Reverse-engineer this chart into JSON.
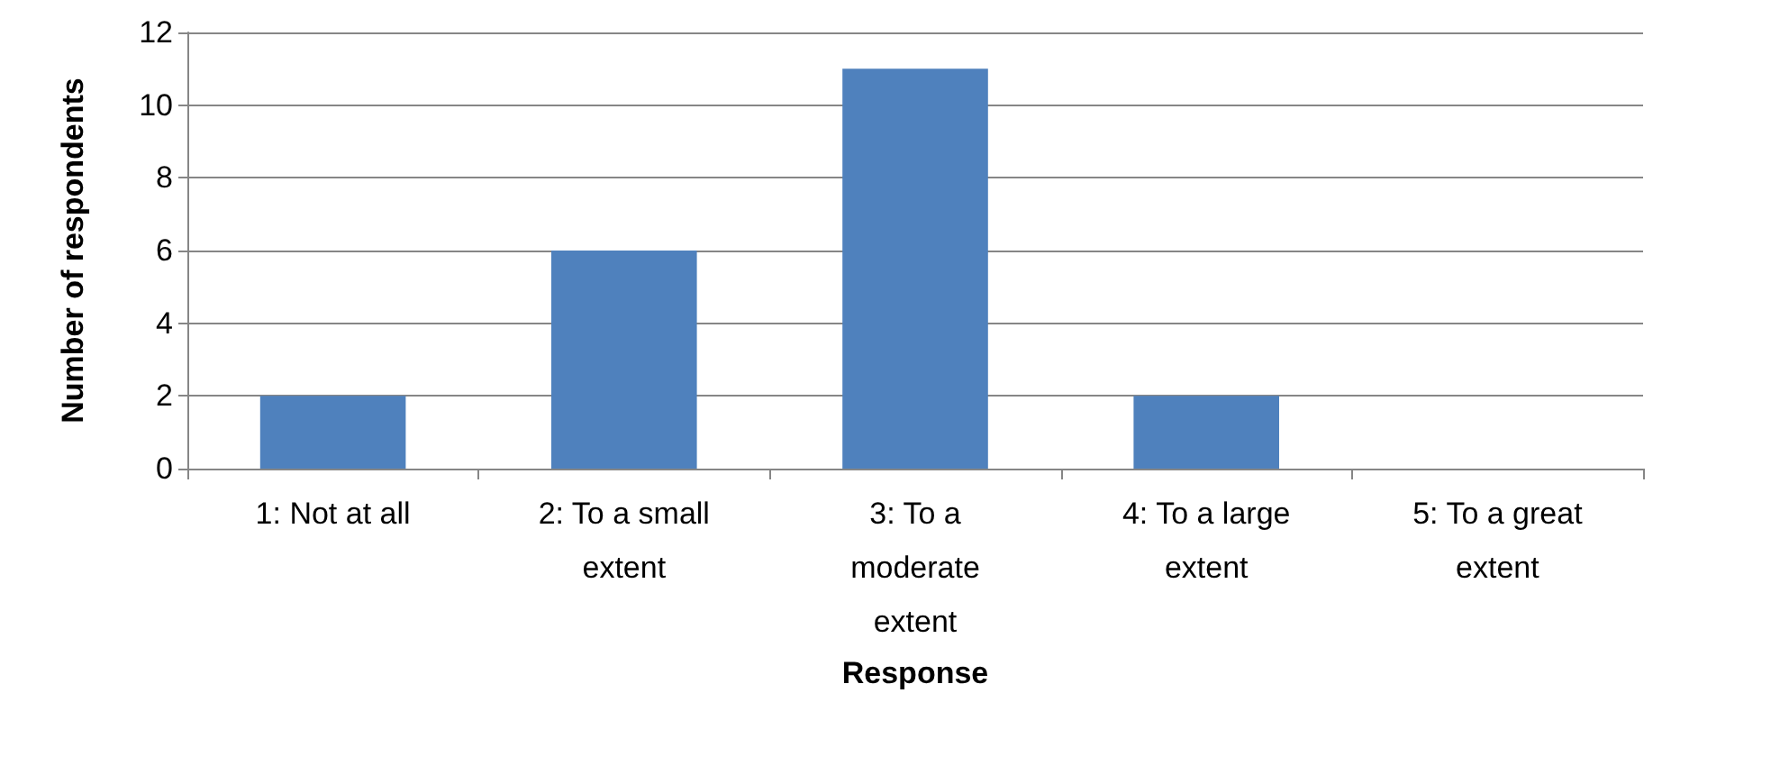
{
  "chart_data": {
    "type": "bar",
    "categories": [
      "1: Not at all",
      "2: To a small extent",
      "3: To a moderate extent",
      "4: To a large extent",
      "5: To a great extent"
    ],
    "values": [
      2,
      6,
      11,
      2,
      0
    ],
    "color": "#4f81bd",
    "xlabel": "Response",
    "ylabel": "Number of respondents",
    "ylim": [
      0,
      12
    ],
    "yticks": [
      0,
      2,
      4,
      6,
      8,
      10,
      12
    ],
    "grid": "y"
  }
}
